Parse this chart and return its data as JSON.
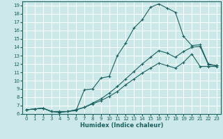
{
  "xlabel": "Humidex (Indice chaleur)",
  "bg_color": "#cce8e8",
  "line_color": "#1a6060",
  "grid_color": "#ffffff",
  "xlim": [
    -0.5,
    23.5
  ],
  "ylim": [
    6,
    19.5
  ],
  "xticks": [
    0,
    1,
    2,
    3,
    4,
    5,
    6,
    7,
    8,
    9,
    10,
    11,
    12,
    13,
    14,
    15,
    16,
    17,
    18,
    19,
    20,
    21,
    22,
    23
  ],
  "yticks": [
    6,
    7,
    8,
    9,
    10,
    11,
    12,
    13,
    14,
    15,
    16,
    17,
    18,
    19
  ],
  "line1_x": [
    0,
    1,
    2,
    3,
    4,
    5,
    6,
    7,
    8,
    9,
    10,
    11,
    12,
    13,
    14,
    15,
    16,
    17,
    18,
    19,
    20,
    21,
    22,
    23
  ],
  "line1_y": [
    6.5,
    6.6,
    6.7,
    6.3,
    6.3,
    6.3,
    6.4,
    8.9,
    9.0,
    10.3,
    10.5,
    13.0,
    14.5,
    16.3,
    17.3,
    18.8,
    19.2,
    18.7,
    18.2,
    15.3,
    14.2,
    14.3,
    12.0,
    11.8
  ],
  "line2_x": [
    0,
    1,
    2,
    3,
    4,
    5,
    6,
    7,
    8,
    9,
    10,
    11,
    12,
    13,
    14,
    15,
    16,
    17,
    18,
    19,
    20,
    21,
    22,
    23
  ],
  "line2_y": [
    6.5,
    6.6,
    6.7,
    6.3,
    6.2,
    6.3,
    6.5,
    6.8,
    7.3,
    7.8,
    8.5,
    9.3,
    10.2,
    11.1,
    12.0,
    12.8,
    13.6,
    13.3,
    12.8,
    13.5,
    14.0,
    14.1,
    11.9,
    11.8
  ],
  "line3_x": [
    0,
    1,
    2,
    3,
    4,
    5,
    6,
    7,
    8,
    9,
    10,
    11,
    12,
    13,
    14,
    15,
    16,
    17,
    18,
    19,
    20,
    21,
    22,
    23
  ],
  "line3_y": [
    6.5,
    6.6,
    6.7,
    6.3,
    6.2,
    6.3,
    6.5,
    6.8,
    7.2,
    7.6,
    8.1,
    8.7,
    9.5,
    10.2,
    10.9,
    11.5,
    12.1,
    11.8,
    11.5,
    12.2,
    13.2,
    11.7,
    11.7,
    11.7
  ]
}
